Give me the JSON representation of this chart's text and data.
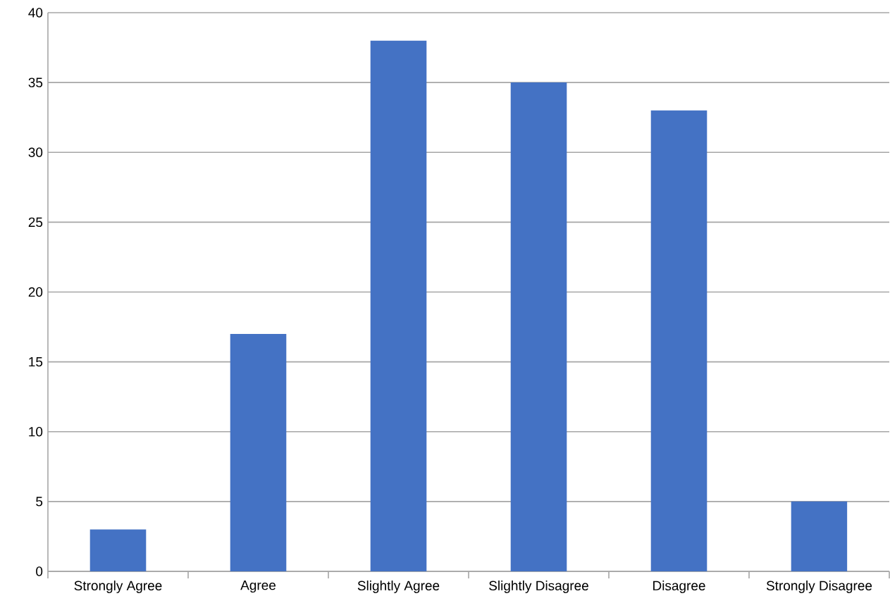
{
  "chart_data": {
    "type": "bar",
    "categories": [
      "Strongly Agree",
      "Agree",
      "Slightly Agree",
      "Slightly Disagree",
      "Disagree",
      "Strongly Disagree"
    ],
    "values": [
      3,
      17,
      38,
      35,
      33,
      5
    ],
    "color": "#4472c4",
    "ylim": [
      0,
      40
    ],
    "yticks": [
      0,
      5,
      10,
      15,
      20,
      25,
      30,
      35,
      40
    ],
    "grid": "y"
  }
}
